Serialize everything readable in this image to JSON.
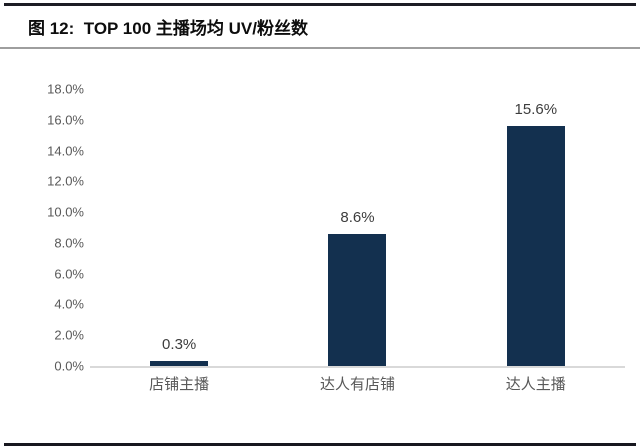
{
  "chart_data": {
    "type": "bar",
    "title": "图 12:  TOP 100 主播场均 UV/粉丝数",
    "categories": [
      "店铺主播",
      "达人有店铺",
      "达人主播"
    ],
    "values": [
      0.3,
      8.6,
      15.6
    ],
    "value_labels": [
      "0.3%",
      "8.6%",
      "15.6%"
    ],
    "xlabel": "",
    "ylabel": "",
    "ylim": [
      0,
      18
    ],
    "y_tick_step": 2,
    "y_tick_labels": [
      "0.0%",
      "2.0%",
      "4.0%",
      "6.0%",
      "8.0%",
      "10.0%",
      "12.0%",
      "14.0%",
      "16.0%",
      "18.0%"
    ],
    "grid": false,
    "legend": "none",
    "colors": {
      "bar": "#13304f",
      "title_text": "#0d0d0d",
      "axis_text": "#595959",
      "value_text": "#3d3d3d",
      "baseline": "#d9d9d9",
      "top_rule": "#1c1c24",
      "title_divider": "#9e9e9e",
      "bottom_rule": "#17171f"
    }
  }
}
